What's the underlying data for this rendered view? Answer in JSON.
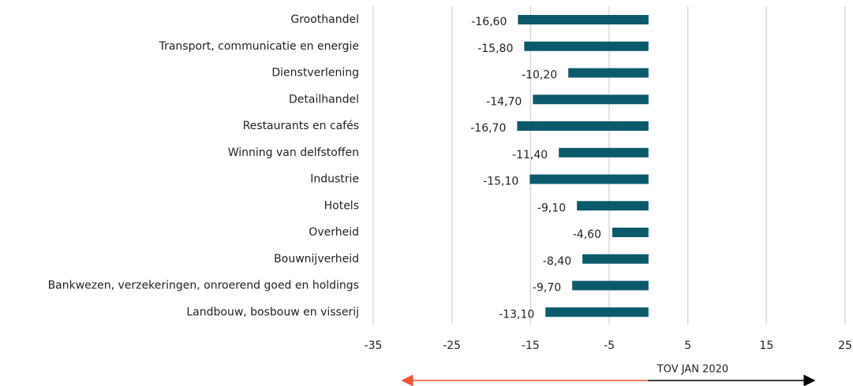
{
  "chart_data": {
    "type": "bar",
    "orientation": "horizontal",
    "categories": [
      "Groothandel",
      "Transport, communicatie en energie",
      "Dienstverlening",
      "Detailhandel",
      "Restaurants en cafés",
      "Winning van delfstoffen",
      "Industrie",
      "Hotels",
      "Overheid",
      "Bouwnijverheid",
      "Bankwezen, verzekeringen, onroerend goed en holdings",
      "Landbouw, bosbouw en visserij"
    ],
    "values": [
      -16.6,
      -15.8,
      -10.2,
      -14.7,
      -16.7,
      -11.4,
      -15.1,
      -9.1,
      -4.6,
      -8.4,
      -9.7,
      -13.1
    ],
    "value_labels": [
      "-16,60",
      "-15,80",
      "-10,20",
      "-14,70",
      "-16,70",
      "-11,40",
      "-15,10",
      "-9,10",
      "-4,60",
      "-8,40",
      "-9,70",
      "-13,10"
    ],
    "color": "#0b5a6b",
    "xlim": [
      -35,
      25
    ],
    "xticks": [
      -35,
      -25,
      -15,
      -5,
      5,
      15,
      25
    ],
    "grid": true,
    "annotation": "TOV JAN 2020"
  }
}
